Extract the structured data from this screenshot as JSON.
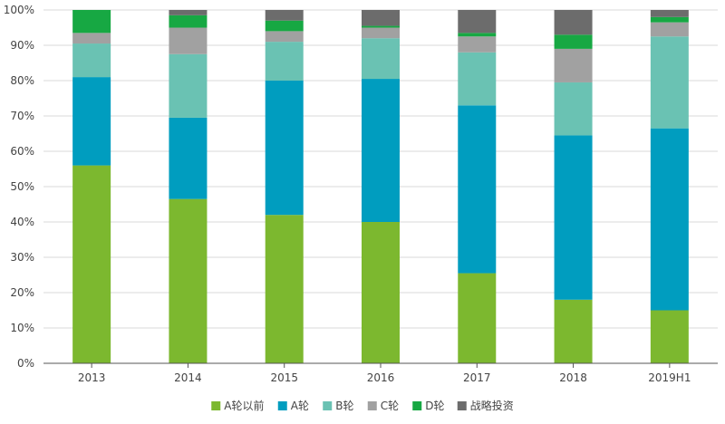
{
  "chart_data": {
    "type": "bar",
    "stacked": true,
    "percent": true,
    "categories": [
      "2013",
      "2014",
      "2015",
      "2016",
      "2017",
      "2018",
      "2019H1"
    ],
    "series": [
      {
        "name": "A轮以前",
        "color": "#7CB82F",
        "values": [
          56,
          46.5,
          42,
          40,
          25.5,
          18,
          15
        ]
      },
      {
        "name": "A轮",
        "color": "#009DBF",
        "values": [
          25,
          23,
          38,
          40.5,
          47.5,
          46.5,
          51.5
        ]
      },
      {
        "name": "B轮",
        "color": "#6AC2B3",
        "values": [
          9.5,
          18,
          11,
          11.5,
          15,
          15,
          26
        ]
      },
      {
        "name": "C轮",
        "color": "#A1A1A1",
        "values": [
          3,
          7.5,
          3,
          3,
          4.5,
          9.5,
          4
        ]
      },
      {
        "name": "D轮",
        "color": "#17A843",
        "values": [
          6.5,
          3.5,
          3,
          0.5,
          1,
          4,
          1.5
        ]
      },
      {
        "name": "战略投资",
        "color": "#6C6C6C",
        "values": [
          0,
          1.5,
          3,
          4.5,
          6.5,
          7,
          2
        ]
      }
    ],
    "yticks": [
      "0%",
      "10%",
      "20%",
      "30%",
      "40%",
      "50%",
      "60%",
      "70%",
      "80%",
      "90%",
      "100%"
    ],
    "ylim": [
      0,
      100
    ],
    "grid": true,
    "legend_position": "bottom",
    "title": "",
    "xlabel": "",
    "ylabel": ""
  }
}
